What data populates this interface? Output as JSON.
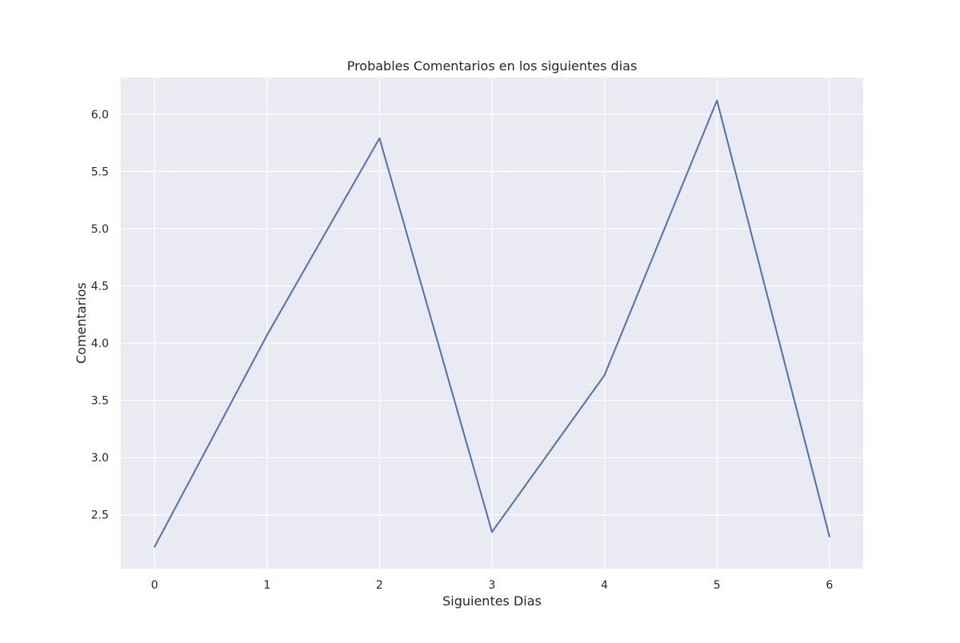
{
  "chart_data": {
    "type": "line",
    "title": "Probables Comentarios en los siguientes dias",
    "xlabel": "Siguientes Dias",
    "ylabel": "Comentarios",
    "x": [
      0,
      1,
      2,
      3,
      4,
      5,
      6
    ],
    "series": [
      {
        "values": [
          2.22,
          4.07,
          5.79,
          2.35,
          3.72,
          6.12,
          2.31
        ],
        "color": "#4c72b0"
      }
    ],
    "xlim": [
      -0.3,
      6.3
    ],
    "ylim": [
      2.03,
      6.32
    ],
    "xticks": [
      0,
      1,
      2,
      3,
      4,
      5,
      6
    ],
    "xtick_labels": [
      "0",
      "1",
      "2",
      "3",
      "4",
      "5",
      "6"
    ],
    "yticks": [
      2.5,
      3.0,
      3.5,
      4.0,
      4.5,
      5.0,
      5.5,
      6.0
    ],
    "ytick_labels": [
      "2.5",
      "3.0",
      "3.5",
      "4.0",
      "4.5",
      "5.0",
      "5.5",
      "6.0"
    ],
    "grid": true,
    "style": {
      "background": "#eaeaf2",
      "grid_color": "#ffffff"
    }
  }
}
